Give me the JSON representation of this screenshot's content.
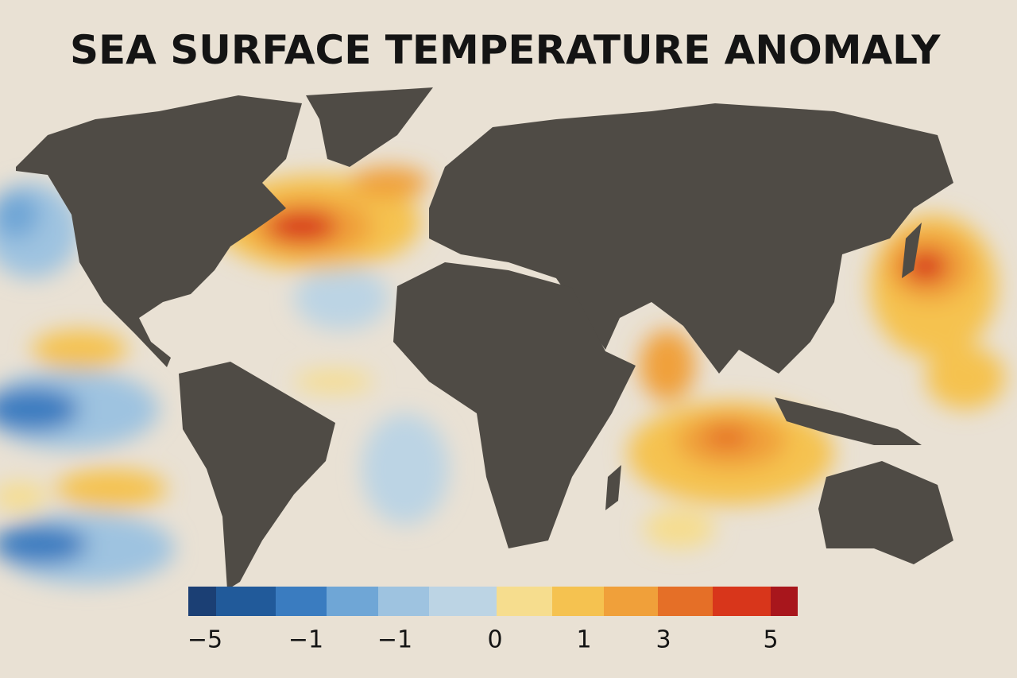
{
  "title": "SEA SURFACE TEMPERATURE ANOMALY",
  "colorbar": {
    "colors": [
      "#1b3f74",
      "#215a9a",
      "#3a7cc0",
      "#6fa6d6",
      "#9ec3e0",
      "#bcd4e4",
      "#f6dd8e",
      "#f5c250",
      "#f0a03a",
      "#e56f27",
      "#d8361b",
      "#a8161c"
    ],
    "labels": [
      "−5",
      "−1",
      "−1",
      "0",
      "1",
      "3",
      "5"
    ]
  }
}
